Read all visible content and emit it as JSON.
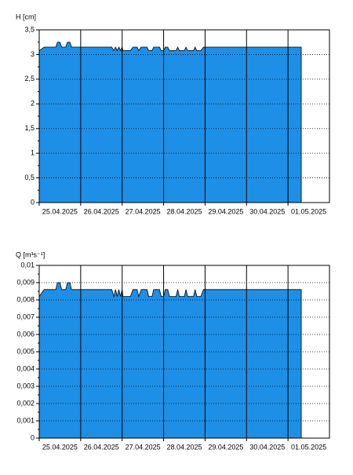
{
  "chart_data": [
    {
      "type": "area",
      "y_label": "H [cm]",
      "color": "#1e8fe6",
      "grid": true,
      "xlim": [
        0,
        7
      ],
      "xticks": [
        {
          "value": 0,
          "label": "25.04.2025"
        },
        {
          "value": 1,
          "label": "26.04.2025"
        },
        {
          "value": 2,
          "label": "27.04.2025"
        },
        {
          "value": 3,
          "label": "28.04.2025"
        },
        {
          "value": 4,
          "label": "29.04.2025"
        },
        {
          "value": 5,
          "label": "30.04.2025"
        },
        {
          "value": 6,
          "label": "01.05.2025"
        }
      ],
      "ylim": [
        0,
        3.5
      ],
      "yticks": [
        0,
        {
          "value": 0.5,
          "label": "0,5"
        },
        1,
        {
          "value": 1.5,
          "label": "1,5"
        },
        2,
        {
          "value": 2.5,
          "label": "2,5"
        },
        3,
        {
          "value": 3.5,
          "label": "3,5"
        }
      ],
      "x": [
        0,
        0.12,
        0.4,
        0.44,
        0.5,
        0.54,
        0.64,
        0.68,
        0.74,
        0.78,
        1.75,
        1.8,
        1.84,
        1.88,
        1.92,
        1.96,
        2.0,
        2.02,
        2.2,
        2.26,
        2.36,
        2.4,
        2.46,
        2.6,
        2.64,
        2.72,
        2.76,
        2.9,
        2.94,
        3.0,
        3.04,
        3.1,
        3.14,
        3.3,
        3.34,
        3.38,
        3.5,
        3.54,
        3.58,
        3.72,
        3.76,
        3.8,
        3.9,
        3.96,
        6.32
      ],
      "values": [
        3.08,
        3.15,
        3.15,
        3.25,
        3.25,
        3.15,
        3.15,
        3.25,
        3.25,
        3.15,
        3.15,
        3.08,
        3.15,
        3.08,
        3.15,
        3.08,
        3.15,
        3.08,
        3.08,
        3.15,
        3.15,
        3.08,
        3.15,
        3.15,
        3.08,
        3.08,
        3.15,
        3.15,
        3.08,
        3.08,
        3.15,
        3.15,
        3.08,
        3.08,
        3.15,
        3.08,
        3.08,
        3.15,
        3.08,
        3.08,
        3.15,
        3.08,
        3.08,
        3.15,
        3.15
      ]
    },
    {
      "type": "area",
      "y_label": "Q [m³s⁻¹]",
      "color": "#1e8fe6",
      "grid": true,
      "xlim": [
        0,
        7
      ],
      "xticks": [
        {
          "value": 0,
          "label": "25.04.2025"
        },
        {
          "value": 1,
          "label": "26.04.2025"
        },
        {
          "value": 2,
          "label": "27.04.2025"
        },
        {
          "value": 3,
          "label": "28.04.2025"
        },
        {
          "value": 4,
          "label": "29.04.2025"
        },
        {
          "value": 5,
          "label": "30.04.2025"
        },
        {
          "value": 6,
          "label": "01.05.2025"
        }
      ],
      "ylim": [
        0,
        0.01
      ],
      "yticks": [
        0,
        {
          "value": 0.001,
          "label": "0,001"
        },
        {
          "value": 0.002,
          "label": "0,002"
        },
        {
          "value": 0.003,
          "label": "0,003"
        },
        {
          "value": 0.004,
          "label": "0,004"
        },
        {
          "value": 0.005,
          "label": "0,005"
        },
        {
          "value": 0.006,
          "label": "0,006"
        },
        {
          "value": 0.007,
          "label": "0,007"
        },
        {
          "value": 0.008,
          "label": "0,008"
        },
        {
          "value": 0.009,
          "label": "0,009"
        },
        {
          "value": 0.01,
          "label": "0,01"
        }
      ],
      "x": [
        0,
        0.12,
        0.4,
        0.44,
        0.5,
        0.54,
        0.64,
        0.68,
        0.74,
        0.78,
        1.75,
        1.8,
        1.84,
        1.88,
        1.92,
        1.96,
        2.0,
        2.02,
        2.2,
        2.26,
        2.36,
        2.4,
        2.46,
        2.6,
        2.64,
        2.72,
        2.76,
        2.9,
        2.94,
        3.0,
        3.04,
        3.1,
        3.14,
        3.3,
        3.34,
        3.38,
        3.5,
        3.54,
        3.58,
        3.72,
        3.76,
        3.8,
        3.9,
        3.96,
        6.32
      ],
      "values": [
        0.0082,
        0.0086,
        0.0086,
        0.009,
        0.009,
        0.0086,
        0.0086,
        0.009,
        0.009,
        0.0086,
        0.0086,
        0.0082,
        0.0086,
        0.0082,
        0.0086,
        0.0082,
        0.0086,
        0.0082,
        0.0082,
        0.0086,
        0.0086,
        0.0082,
        0.0086,
        0.0086,
        0.0082,
        0.0082,
        0.0086,
        0.0086,
        0.0082,
        0.0082,
        0.0086,
        0.0086,
        0.0082,
        0.0082,
        0.0086,
        0.0082,
        0.0082,
        0.0086,
        0.0082,
        0.0082,
        0.0086,
        0.0082,
        0.0082,
        0.0086,
        0.0086
      ]
    }
  ]
}
